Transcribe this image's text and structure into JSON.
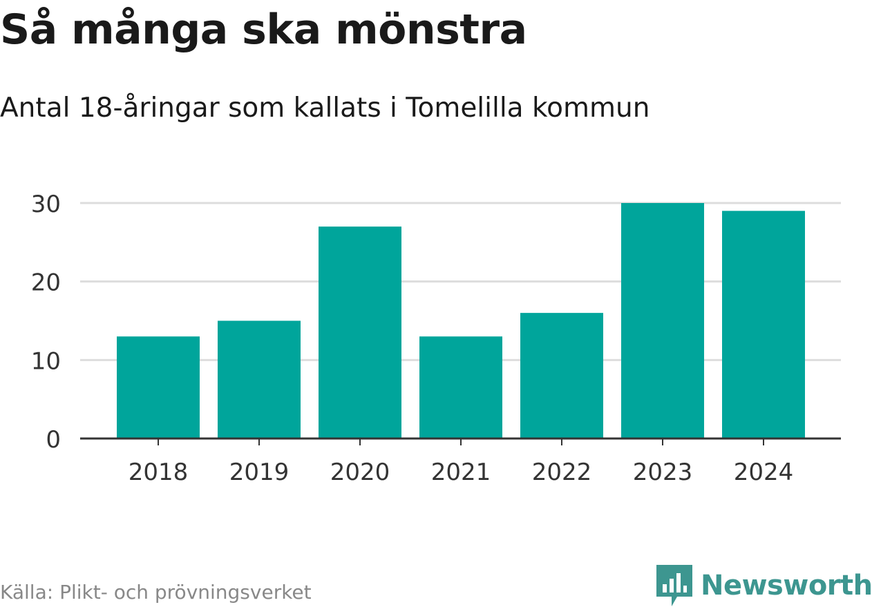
{
  "header": {
    "title": "Så många ska mönstra",
    "subtitle": "Antal 18-åringar som kallats i Tomelilla kommun"
  },
  "footer": {
    "source": "Källa: Plikt- och prövningsverket",
    "brand": "Newsworthy",
    "brand_icon": "bar-chart-badge-icon"
  },
  "colors": {
    "bar": "#00a59b",
    "grid": "#dddddd",
    "axis": "#333333",
    "brand": "#3d9690"
  },
  "chart_data": {
    "type": "bar",
    "categories": [
      "2018",
      "2019",
      "2020",
      "2021",
      "2022",
      "2023",
      "2024"
    ],
    "values": [
      13,
      15,
      27,
      13,
      16,
      30,
      29
    ],
    "yticks": [
      0,
      10,
      20,
      30
    ],
    "ylim": [
      0,
      30
    ],
    "grid": true,
    "xlabel": "",
    "ylabel": ""
  }
}
